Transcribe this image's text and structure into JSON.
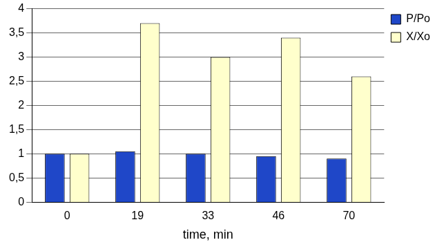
{
  "chart_data": {
    "type": "bar",
    "x_label": "time, min",
    "categories": [
      "0",
      "19",
      "33",
      "46",
      "70"
    ],
    "series": [
      {
        "name": "P/Po",
        "color": "#1f47c8",
        "values": [
          1.0,
          1.05,
          1.0,
          0.95,
          0.9
        ]
      },
      {
        "name": "X/Xo",
        "color": "#ffffcc",
        "values": [
          1.0,
          3.7,
          3.0,
          3.4,
          2.6
        ]
      }
    ],
    "ylim": [
      0,
      4
    ],
    "yticks": [
      0,
      {
        "value": 0.5,
        "label": "0,5"
      },
      1,
      {
        "value": 1.5,
        "label": "1,5"
      },
      2,
      {
        "value": 2.5,
        "label": "2,5"
      },
      3,
      {
        "value": 3.5,
        "label": "3,5"
      },
      4
    ],
    "grid": true,
    "legend": "right"
  }
}
